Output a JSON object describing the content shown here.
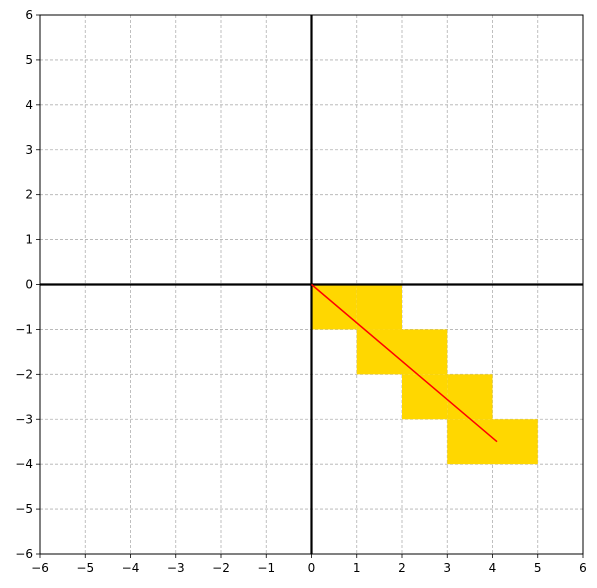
{
  "chart_data": {
    "type": "scatter",
    "title": "",
    "xlabel": "",
    "ylabel": "",
    "xlim": [
      -6,
      6
    ],
    "ylim": [
      -6,
      6
    ],
    "grid": true,
    "x_ticks": [
      -6,
      -5,
      -4,
      -3,
      -2,
      -1,
      0,
      1,
      2,
      3,
      4,
      5,
      6
    ],
    "y_ticks": [
      -6,
      -5,
      -4,
      -3,
      -2,
      -1,
      0,
      1,
      2,
      3,
      4,
      5,
      6
    ],
    "x_tick_labels": [
      "−6",
      "−5",
      "−4",
      "−3",
      "−2",
      "−1",
      "0",
      "1",
      "2",
      "3",
      "4",
      "5",
      "6"
    ],
    "y_tick_labels": [
      "−6",
      "−5",
      "−4",
      "−3",
      "−2",
      "−1",
      "0",
      "1",
      "2",
      "3",
      "4",
      "5",
      "6"
    ],
    "filled_cells": [
      {
        "x0": 0,
        "y0": -1,
        "x1": 1,
        "y1": 0
      },
      {
        "x0": 1,
        "y0": -1,
        "x1": 2,
        "y1": 0
      },
      {
        "x0": 1,
        "y0": -2,
        "x1": 2,
        "y1": -1
      },
      {
        "x0": 2,
        "y0": -2,
        "x1": 3,
        "y1": -1
      },
      {
        "x0": 2,
        "y0": -3,
        "x1": 3,
        "y1": -2
      },
      {
        "x0": 3,
        "y0": -3,
        "x1": 4,
        "y1": -2
      },
      {
        "x0": 3,
        "y0": -4,
        "x1": 4,
        "y1": -3
      },
      {
        "x0": 4,
        "y0": -4,
        "x1": 5,
        "y1": -3
      }
    ],
    "line": {
      "x": [
        0,
        4.1
      ],
      "y": [
        0,
        -3.5
      ]
    },
    "colors": {
      "cell_fill": "#FFD700",
      "line": "#FF0000",
      "axis": "#000000",
      "grid": "#b0b0b0"
    }
  }
}
